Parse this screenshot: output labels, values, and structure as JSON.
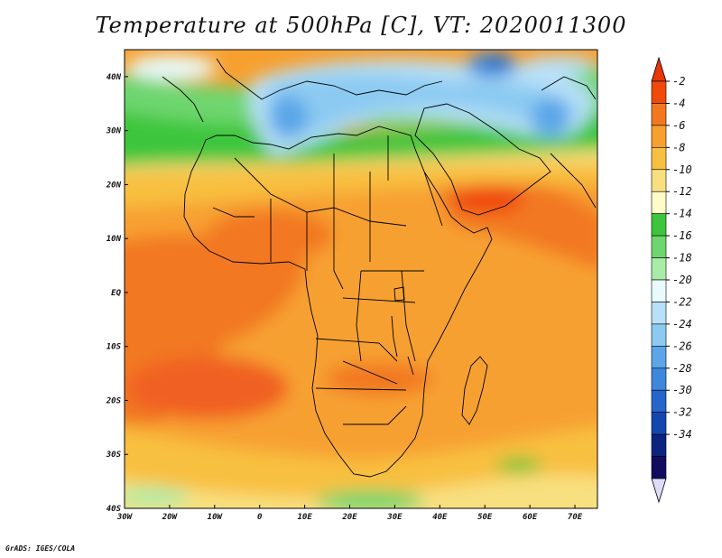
{
  "title": "Temperature at 500hPa [C], VT: 2020011300",
  "credit": "GrADS: IGES/COLA",
  "map": {
    "lon_range": [
      -30,
      75
    ],
    "lat_range": [
      -40,
      45
    ],
    "lon_ticks": [
      "30W",
      "20W",
      "10W",
      "0",
      "10E",
      "20E",
      "30E",
      "40E",
      "50E",
      "60E",
      "70E"
    ],
    "lat_ticks": [
      "40N",
      "30N",
      "20N",
      "10N",
      "EQ",
      "10S",
      "20S",
      "30S",
      "40S"
    ],
    "field": "temperature_500hPa_C"
  },
  "colorbar": {
    "labels": [
      "-2",
      "-4",
      "-6",
      "-8",
      "-10",
      "-12",
      "-14",
      "-16",
      "-18",
      "-20",
      "-22",
      "-24",
      "-26",
      "-28",
      "-30",
      "-32",
      "-34"
    ],
    "colors": [
      "#f04a0a",
      "#f27820",
      "#f7a030",
      "#f8c040",
      "#f8e080",
      "#fffcc8",
      "#3cc63c",
      "#6ed66e",
      "#a8eca8",
      "#e8fafc",
      "#b8e0f8",
      "#8ccaf2",
      "#5aa6e8",
      "#3c88dc",
      "#2466cc",
      "#1446b0",
      "#0a2480",
      "#120c60"
    ],
    "top_arrow_color": "#e8360a",
    "bottom_arrow_color": "#dcdcf8"
  }
}
